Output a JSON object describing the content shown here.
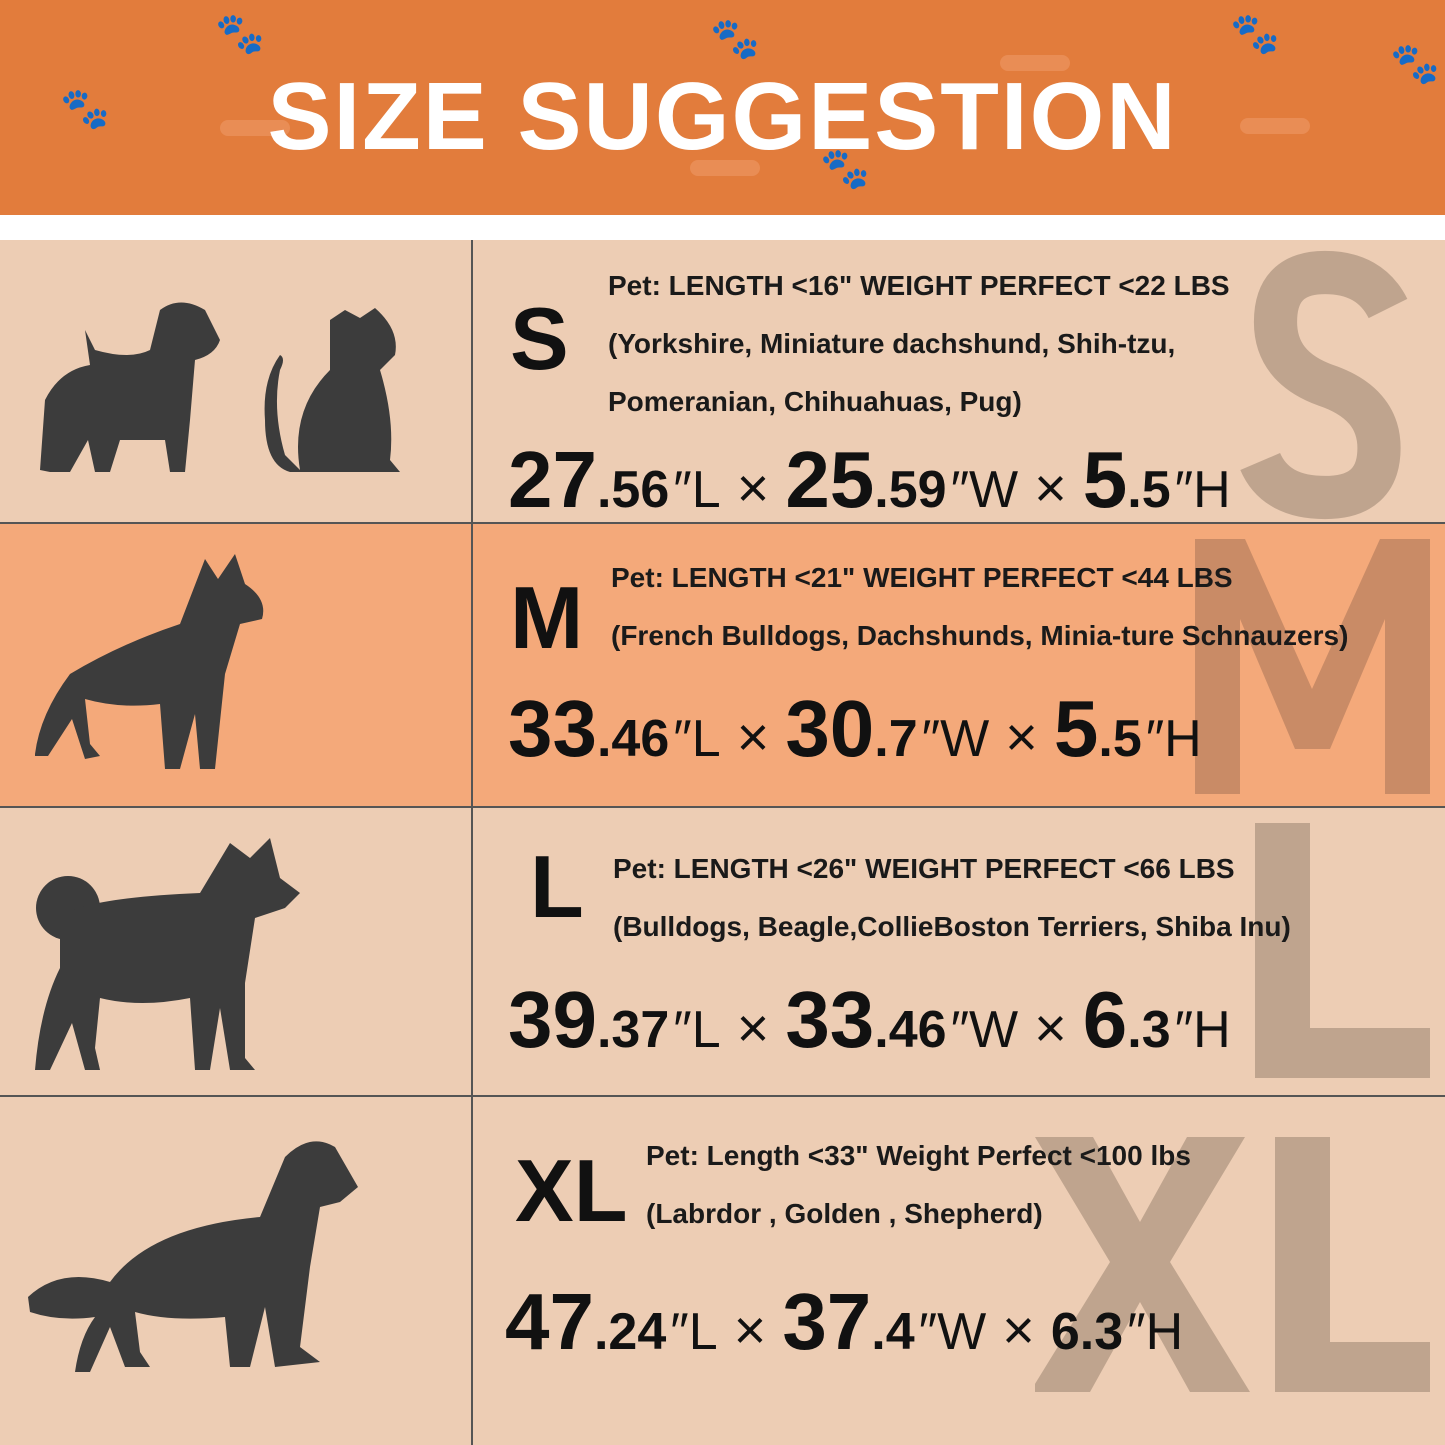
{
  "header": {
    "title": "SIZE SUGGESTION",
    "background": "#E27C3C"
  },
  "colors": {
    "row_light": "#EDCDB4",
    "row_highlight": "#F4A97A",
    "silhouette": "#3C3C3C",
    "watermark": "#BFA48E"
  },
  "sizes": [
    {
      "letter": "S",
      "icons": [
        "terrier-icon",
        "cat-icon"
      ],
      "lines": [
        "Pet:  LENGTH <16\"  WEIGHT PERFECT <22 LBS",
        "(Yorkshire, Miniature dachshund, Shih-tzu,",
        "Pomeranian, Chihuahuas, Pug)"
      ],
      "dims": [
        {
          "big": "27",
          "small": ".56",
          "unit": "″L"
        },
        {
          "big": "25",
          "small": ".59",
          "unit": "″W"
        },
        {
          "big": "5",
          "small": ".5",
          "unit": "″H"
        }
      ]
    },
    {
      "letter": "M",
      "icons": [
        "french-bulldog-icon"
      ],
      "lines": [
        "Pet:  LENGTH <21\"  WEIGHT PERFECT <44 LBS",
        "(French Bulldogs, Dachshunds, Minia-ture Schnauzers)"
      ],
      "dims": [
        {
          "big": "33",
          "small": ".46",
          "unit": "″L"
        },
        {
          "big": "30",
          "small": ".7",
          "unit": "″W"
        },
        {
          "big": "5",
          "small": ".5",
          "unit": "″H"
        }
      ]
    },
    {
      "letter": "L",
      "icons": [
        "shiba-inu-icon"
      ],
      "lines": [
        "Pet:  LENGTH <26\" WEIGHT PERFECT <66 LBS",
        "(Bulldogs, Beagle,CollieBoston Terriers, Shiba Inu)"
      ],
      "dims": [
        {
          "big": "39",
          "small": ".37",
          "unit": "″L"
        },
        {
          "big": "33",
          "small": ".46",
          "unit": "″W"
        },
        {
          "big": "6",
          "small": ".3",
          "unit": "″H"
        }
      ]
    },
    {
      "letter": "XL",
      "icons": [
        "golden-retriever-icon"
      ],
      "lines": [
        "Pet:  Length <33\"  Weight Perfect <100 lbs",
        "(Labrdor , Golden ,  Shepherd)"
      ],
      "dims": [
        {
          "big": "47",
          "small": ".24",
          "unit": "″L"
        },
        {
          "big": "37",
          "small": ".4",
          "unit": "″W"
        },
        {
          "big": "",
          "small": "6.3",
          "unit": "″H"
        }
      ]
    }
  ]
}
